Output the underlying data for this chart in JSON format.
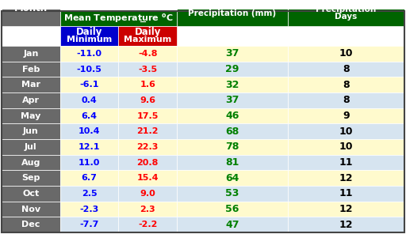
{
  "months": [
    "Jan",
    "Feb",
    "Mar",
    "Apr",
    "May",
    "Jun",
    "Jul",
    "Aug",
    "Sep",
    "Oct",
    "Nov",
    "Dec"
  ],
  "daily_min": [
    -11.0,
    -10.5,
    -6.1,
    0.4,
    6.4,
    10.4,
    12.1,
    11.0,
    6.7,
    2.5,
    -2.3,
    -7.7
  ],
  "daily_max": [
    -4.8,
    -3.5,
    1.6,
    9.6,
    17.5,
    21.2,
    22.3,
    20.8,
    15.4,
    9.0,
    2.3,
    -2.2
  ],
  "precipitation": [
    37,
    29,
    32,
    37,
    46,
    68,
    78,
    81,
    64,
    53,
    56,
    47
  ],
  "precip_days": [
    10,
    8,
    8,
    8,
    9,
    10,
    10,
    11,
    12,
    11,
    12,
    12
  ],
  "header_bg": "#006400",
  "subheader_min_bg": "#0000CD",
  "subheader_max_bg": "#CC0000",
  "month_col_bg": "#696969",
  "row_bg_odd": "#FFFACD",
  "row_bg_even": "#D6E4F0",
  "min_color": "#0000FF",
  "max_color": "#FF0000",
  "precip_color": "#008000",
  "precip_days_color": "#000000",
  "month_text_color": "#FFFFFF",
  "header_text_color": "#FFFFFF",
  "temp_super_color": "#FFD700",
  "border_color": "#FFFFFF"
}
